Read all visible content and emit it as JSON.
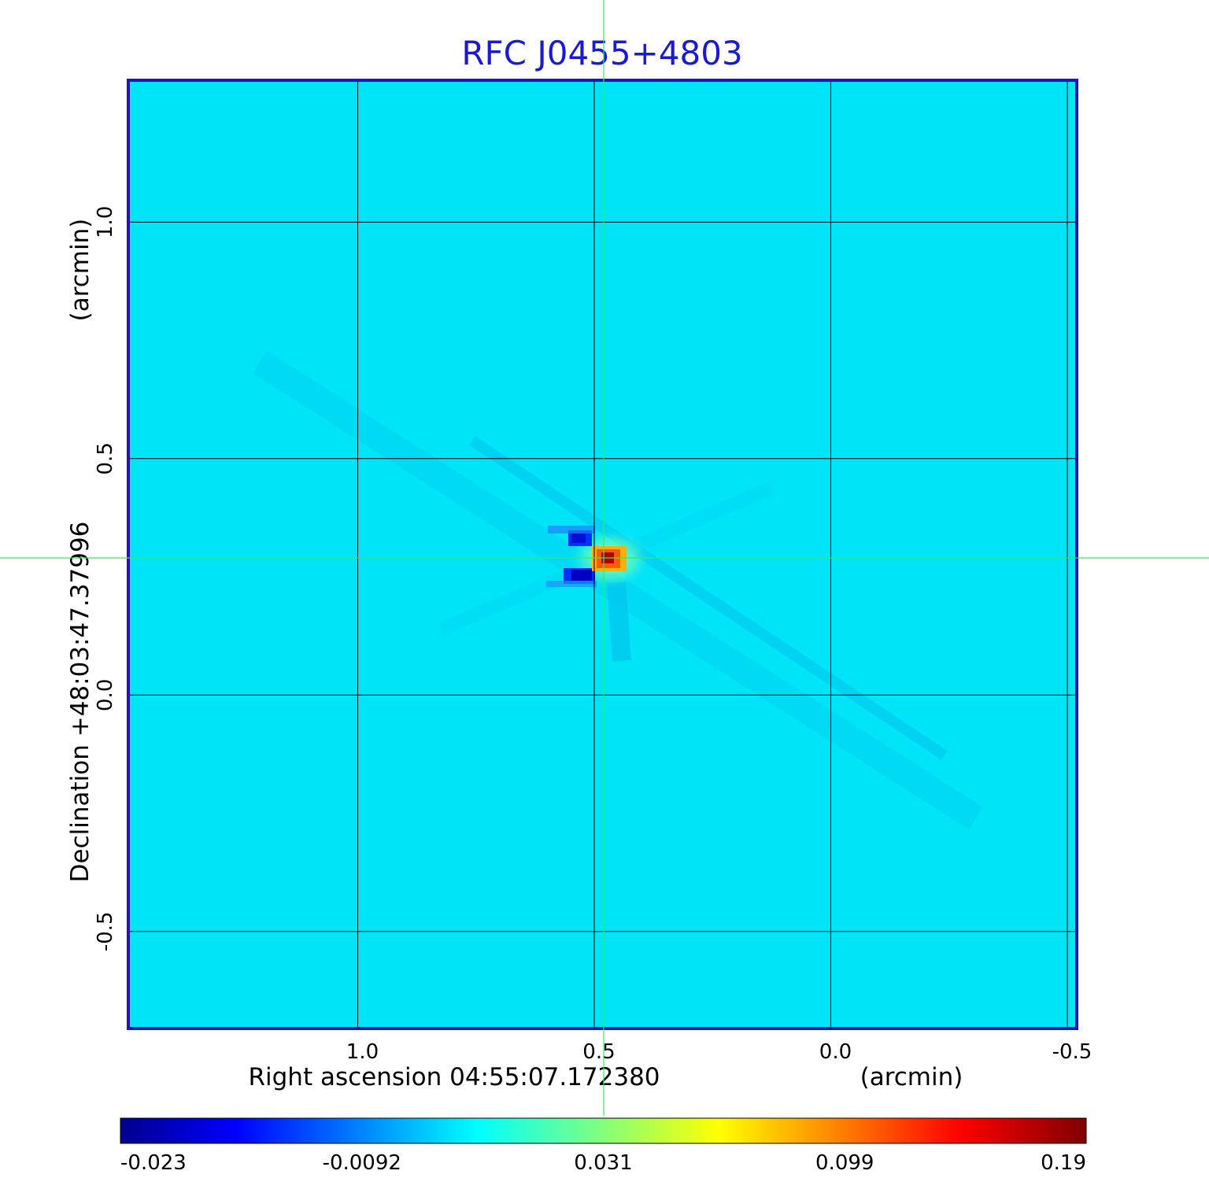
{
  "chart_data": {
    "type": "heatmap",
    "title": "RFC J0455+4803",
    "xlabel": "Right ascension  04:55:07.172380",
    "xlabel_unit": "(arcmin)",
    "ylabel": "Declination  +48:03:47.37996",
    "ylabel_unit": "(arcmin)",
    "x_ticks": [
      {
        "value": 1.0,
        "label": "1.0"
      },
      {
        "value": 0.5,
        "label": "0.5"
      },
      {
        "value": 0.0,
        "label": "0.0"
      },
      {
        "value": -0.5,
        "label": "-0.5"
      }
    ],
    "y_ticks": [
      {
        "value": 1.0,
        "label": "1.0"
      },
      {
        "value": 0.5,
        "label": "0.5"
      },
      {
        "value": 0.0,
        "label": "0.0"
      },
      {
        "value": -0.5,
        "label": "-0.5"
      }
    ],
    "xlim": [
      1.485,
      -0.52
    ],
    "ylim": [
      -0.705,
      1.3
    ],
    "grid": true,
    "crosshair": {
      "x": 0.48,
      "y": 0.29,
      "color": "#33ee55"
    },
    "source_peak": {
      "x": 0.48,
      "y": 0.29,
      "value": 0.19
    },
    "negative_lobes": [
      {
        "x": 0.52,
        "y": 0.33,
        "value": -0.02
      },
      {
        "x": 0.53,
        "y": 0.255,
        "value": -0.023
      }
    ],
    "colorbar": {
      "colormap": "jet",
      "min": -0.023,
      "max": 0.19,
      "ticks": [
        "-0.023",
        "-0.0092",
        "0.031",
        "0.099",
        "0.19"
      ],
      "colors": [
        "#00008f",
        "#0000ff",
        "#00ffff",
        "#ffff00",
        "#ff0000",
        "#800000"
      ]
    },
    "background_color": "#00e4f8"
  }
}
